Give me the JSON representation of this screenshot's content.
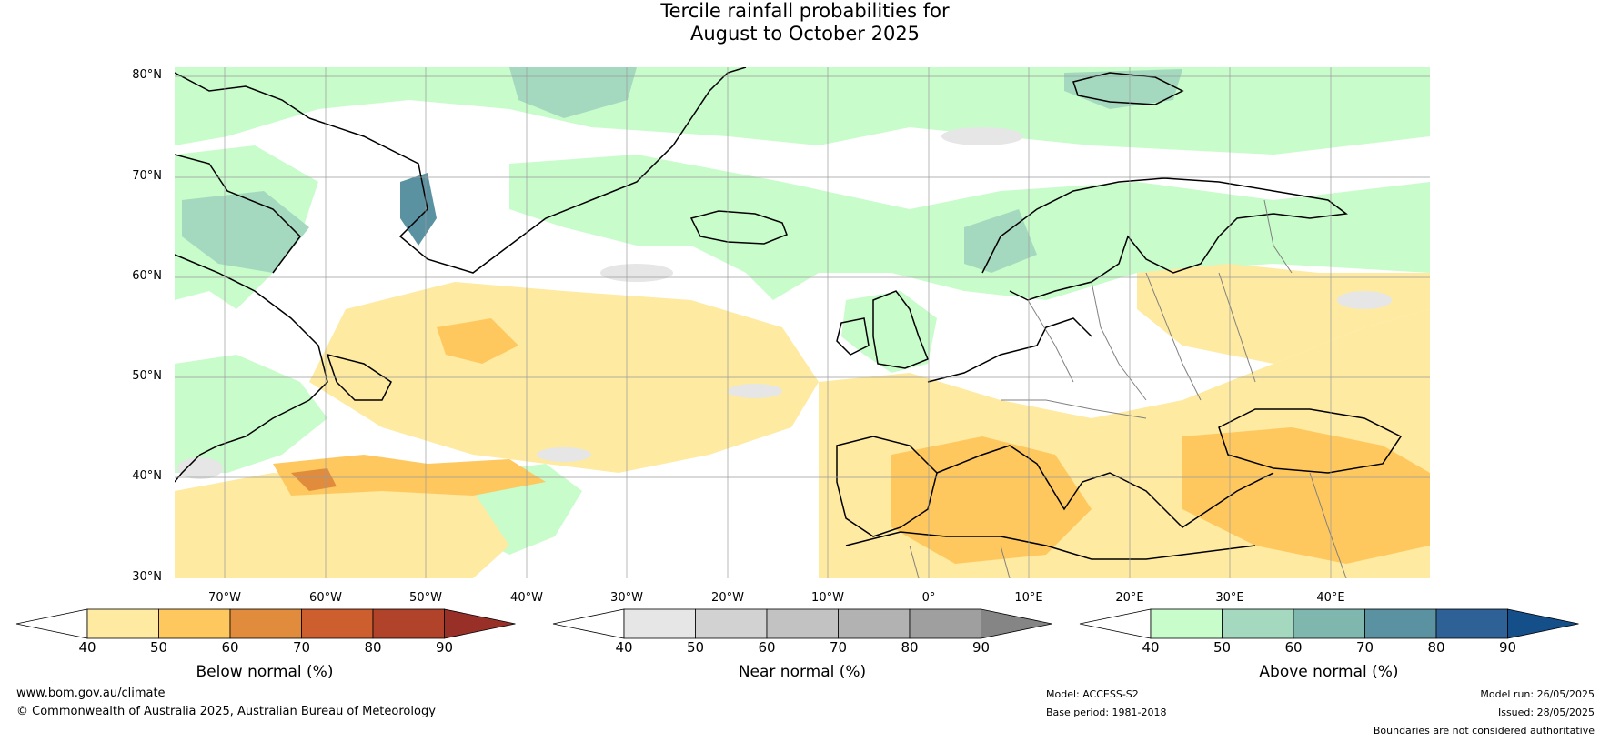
{
  "title": {
    "line1": "Tercile rainfall probabilities for",
    "line2": "August to October 2025"
  },
  "map": {
    "lat_labels": [
      "80°N",
      "70°N",
      "60°N",
      "50°N",
      "40°N",
      "30°N"
    ],
    "lon_labels": [
      "70°W",
      "60°W",
      "50°W",
      "40°W",
      "30°W",
      "20°W",
      "10°W",
      "0°",
      "10°E",
      "20°E",
      "30°E",
      "40°E"
    ],
    "colors": {
      "land_border": "#000000",
      "country_border": "#808080",
      "grid": "#9a9a9a"
    }
  },
  "colorbars": [
    {
      "label": "Below normal (%)",
      "ticks": [
        "40",
        "50",
        "60",
        "70",
        "80",
        "90"
      ],
      "colors": [
        "#ffffff",
        "#feeaa0",
        "#fec85f",
        "#e08c3c",
        "#cd5e2d",
        "#b0432a",
        "#993028"
      ]
    },
    {
      "label": "Near normal (%)",
      "ticks": [
        "40",
        "50",
        "60",
        "70",
        "80",
        "90"
      ],
      "colors": [
        "#ffffff",
        "#e6e6e6",
        "#d2d2d2",
        "#c2c2c2",
        "#b2b2b2",
        "#9f9f9f",
        "#858585"
      ]
    },
    {
      "label": "Above normal (%)",
      "ticks": [
        "40",
        "50",
        "60",
        "70",
        "80",
        "90"
      ],
      "colors": [
        "#ffffff",
        "#c8fccb",
        "#a4d9bf",
        "#7fb6ad",
        "#5a92a2",
        "#2e6196",
        "#144f8a"
      ]
    }
  ],
  "footer": {
    "website": "www.bom.gov.au/climate",
    "copyright": "© Commonwealth of Australia 2025, Australian Bureau of Meteorology",
    "model": "Model: ACCESS-S2",
    "base_period": "Base period: 1981-2018",
    "model_run": "Model run: 26/05/2025",
    "issued": "Issued: 28/05/2025",
    "disclaimer": "Boundaries are not considered authoritative"
  }
}
